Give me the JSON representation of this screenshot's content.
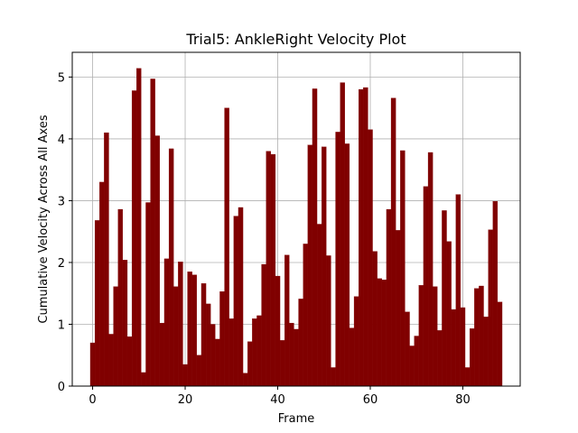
{
  "chart_data": {
    "type": "bar",
    "title": "Trial5: AnkleRight Velocity Plot",
    "xlabel": "Frame",
    "ylabel": "Cumulative Velocity Across All Axes",
    "xlim": [
      -4.4,
      92.4
    ],
    "ylim": [
      0,
      5.4
    ],
    "xticks": [
      0,
      20,
      40,
      60,
      80
    ],
    "yticks": [
      0,
      1,
      2,
      3,
      4,
      5
    ],
    "grid": true,
    "bar_color": "#800000",
    "x": [
      0,
      1,
      2,
      3,
      4,
      5,
      6,
      7,
      8,
      9,
      10,
      11,
      12,
      13,
      14,
      15,
      16,
      17,
      18,
      19,
      20,
      21,
      22,
      23,
      24,
      25,
      26,
      27,
      28,
      29,
      30,
      31,
      32,
      33,
      34,
      35,
      36,
      37,
      38,
      39,
      40,
      41,
      42,
      43,
      44,
      45,
      46,
      47,
      48,
      49,
      50,
      51,
      52,
      53,
      54,
      55,
      56,
      57,
      58,
      59,
      60,
      61,
      62,
      63,
      64,
      65,
      66,
      67,
      68,
      69,
      70,
      71,
      72,
      73,
      74,
      75,
      76,
      77,
      78,
      79,
      80,
      81,
      82,
      83,
      84,
      85,
      86,
      87,
      88
    ],
    "values": [
      0.7,
      2.68,
      3.3,
      4.1,
      0.84,
      1.61,
      2.86,
      2.04,
      0.8,
      4.78,
      5.14,
      0.22,
      2.97,
      4.97,
      4.05,
      1.02,
      2.06,
      3.84,
      1.61,
      2.01,
      0.35,
      1.85,
      1.8,
      0.5,
      1.66,
      1.33,
      1.0,
      0.76,
      1.53,
      4.5,
      1.09,
      2.75,
      2.89,
      0.21,
      0.72,
      1.09,
      1.14,
      1.97,
      3.8,
      3.75,
      1.78,
      0.74,
      2.12,
      1.02,
      0.92,
      1.41,
      2.3,
      3.9,
      4.81,
      2.62,
      3.87,
      2.11,
      0.3,
      4.11,
      4.91,
      3.92,
      0.94,
      1.45,
      4.8,
      4.83,
      4.15,
      2.18,
      1.74,
      1.72,
      2.86,
      4.66,
      2.52,
      3.81,
      1.2,
      0.65,
      0.81,
      1.63,
      3.23,
      3.78,
      1.61,
      0.9,
      2.84,
      2.34,
      1.24,
      3.1,
      1.27,
      0.3,
      0.93,
      1.58,
      1.62,
      1.12,
      2.53,
      2.99,
      1.36
    ]
  }
}
